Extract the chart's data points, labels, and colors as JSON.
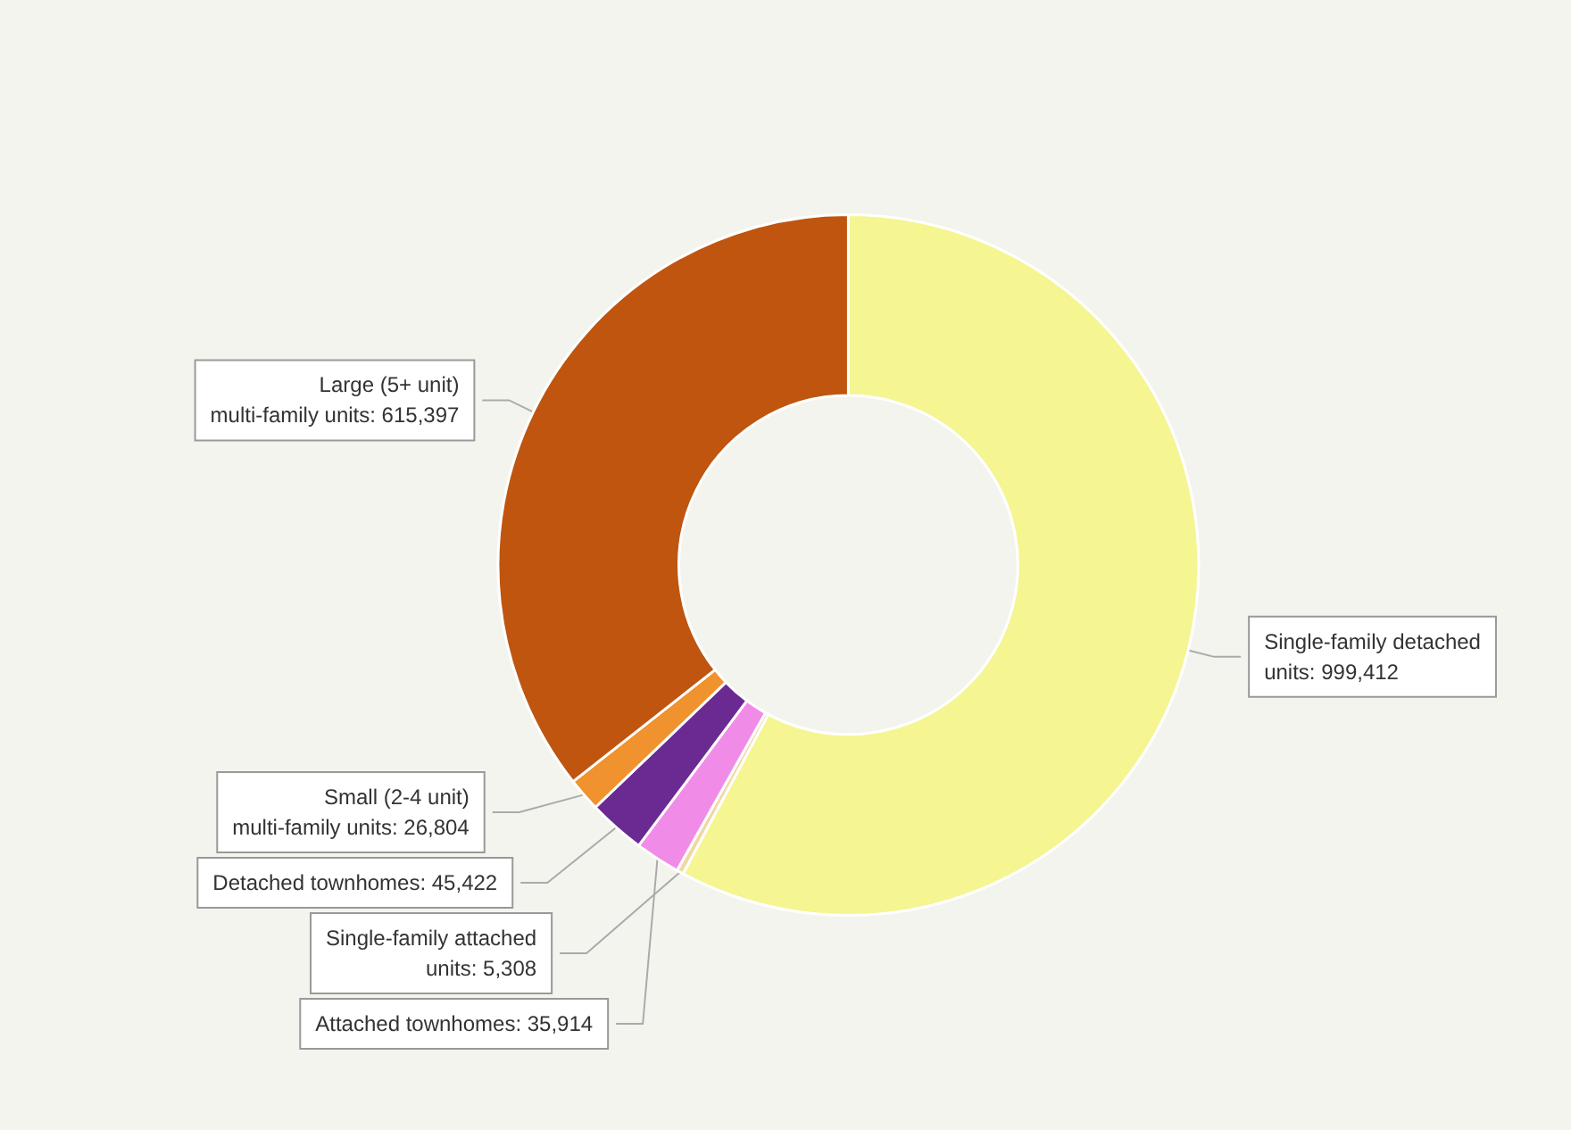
{
  "chart_data": {
    "type": "donut",
    "categories": [
      "Single-family detached units",
      "Single-family attached units",
      "Attached townhomes",
      "Detached townhomes",
      "Small (2-4 unit) multi-family units",
      "Large (5+ unit) multi-family units"
    ],
    "values": [
      999412,
      5308,
      35914,
      45422,
      26804,
      615397
    ],
    "value_labels": [
      "999,412",
      "5,308",
      "35,914",
      "45,422",
      "26,804",
      "615,397"
    ],
    "colors": [
      "#f5f592",
      "#f0d8a0",
      "#f08ce8",
      "#6b2a92",
      "#f0922e",
      "#bf550f"
    ],
    "legend": false
  }
}
